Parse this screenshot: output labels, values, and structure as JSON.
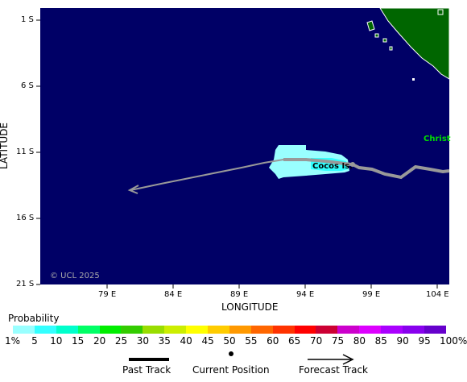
{
  "axes": {
    "y_title": "LATITUDE",
    "x_title": "LONGITUDE",
    "y_ticks": [
      "1 S",
      "6 S",
      "11 S",
      "16 S",
      "21 S"
    ],
    "x_ticks": [
      "79 E",
      "84 E",
      "89 E",
      "94 E",
      "99 E",
      "104 E"
    ]
  },
  "map": {
    "ocean_color": "#000066",
    "land_color": "#006600",
    "track_color": "#999999",
    "labels": {
      "cocos": "Cocos Is.",
      "christmas": "Christ"
    },
    "copyright": "© UCL 2025"
  },
  "probability": {
    "title": "Probability",
    "colors": [
      "#99ffff",
      "#33ffff",
      "#00ffcc",
      "#00ff66",
      "#00ee00",
      "#33cc00",
      "#99dd00",
      "#ccee00",
      "#ffff00",
      "#ffcc00",
      "#ff9900",
      "#ff6600",
      "#ff3300",
      "#ff0000",
      "#cc0033",
      "#cc00cc",
      "#dd00ff",
      "#aa00ff",
      "#8800ee",
      "#6600cc",
      "#550099",
      "#660066"
    ],
    "labels": [
      "1%",
      "5",
      "10",
      "15",
      "20",
      "25",
      "30",
      "35",
      "40",
      "45",
      "50",
      "55",
      "60",
      "65",
      "70",
      "75",
      "80",
      "85",
      "90",
      "95",
      "100%"
    ]
  },
  "legend": {
    "past_track": "Past Track",
    "current_position": "Current Position",
    "forecast_track": "Forecast Track"
  }
}
